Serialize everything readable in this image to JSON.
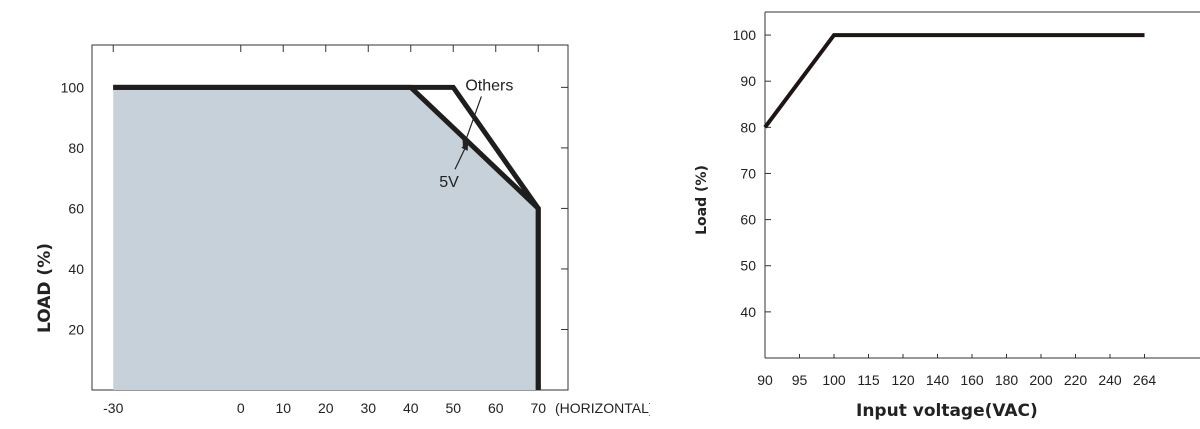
{
  "chart_data": [
    {
      "type": "area",
      "title": "",
      "ylabel": "LOAD (%)",
      "x_unit_label": "(HORIZONTAL)",
      "xlim": [
        -35,
        77
      ],
      "ylim": [
        0,
        114
      ],
      "x_ticks": [
        -30,
        0,
        10,
        20,
        30,
        40,
        50,
        60,
        70
      ],
      "y_ticks": [
        20,
        40,
        60,
        80,
        100
      ],
      "grid": false,
      "colors": {
        "fill": "#c6d1da",
        "line": "#1e1e1e"
      },
      "series": [
        {
          "name": "Others",
          "x": [
            -30,
            50,
            70,
            70
          ],
          "y": [
            100,
            100,
            60,
            0
          ]
        },
        {
          "name": "5V",
          "x": [
            -30,
            40,
            70,
            70
          ],
          "y": [
            100,
            100,
            60,
            0
          ]
        }
      ],
      "annotations": [
        {
          "text": "Others",
          "x": 58.5,
          "y": 99,
          "arrow_to": [
            52.3,
            80
          ]
        },
        {
          "text": "5V",
          "x": 49,
          "y": 67,
          "arrow_to": [
            53.5,
            82
          ]
        }
      ]
    },
    {
      "type": "line",
      "title": "",
      "xlabel": "Input voltage(VAC)",
      "ylabel": "Load (%)",
      "categories": [
        "90",
        "95",
        "100",
        "115",
        "120",
        "140",
        "160",
        "180",
        "200",
        "220",
        "240",
        "264"
      ],
      "ylim": [
        30,
        105
      ],
      "y_ticks": [
        40,
        50,
        60,
        70,
        80,
        90,
        100
      ],
      "grid": false,
      "colors": {
        "line": "#1e1414"
      },
      "series": [
        {
          "x": [
            "90",
            "100",
            "264"
          ],
          "y": [
            80,
            100,
            100
          ]
        }
      ]
    }
  ]
}
